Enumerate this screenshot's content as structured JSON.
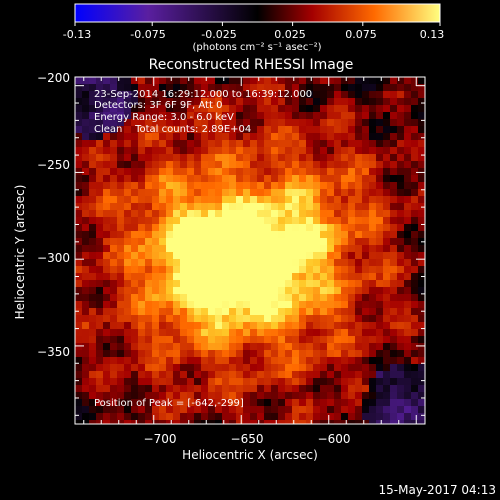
{
  "colorbar": {
    "tick_labels": [
      "-0.13",
      "-0.075",
      "-0.025",
      "0.025",
      "0.075",
      "0.13"
    ],
    "tick_values": [
      -0.13,
      -0.075,
      -0.025,
      0.025,
      0.075,
      0.13
    ],
    "range": [
      -0.13,
      0.13
    ],
    "units_label": "(photons cm⁻² s⁻¹ asec⁻²)",
    "color_stops": [
      "#0000ff",
      "#5a1fa0",
      "#000000",
      "#a40000",
      "#ff6a00",
      "#ffff80"
    ]
  },
  "title": "Reconstructed RHESSI Image",
  "info": {
    "line1": "23-Sep-2014 16:29:12.000 to 16:39:12.000",
    "line2": "Detectors: 3F 6F 9F, Att 0",
    "line3": "Energy Range: 3.0 - 6.0 keV",
    "line4": "Clean    Total counts: 2.89E+04"
  },
  "peak_label": "Position of Peak = [-642,-299]",
  "axes": {
    "xlabel": "Heliocentric X (arcsec)",
    "ylabel": "Heliocentric Y (arcsec)",
    "xlim": [
      -745,
      -545
    ],
    "ylim": [
      -395,
      -195
    ],
    "xticks": [
      -700,
      -650,
      -600
    ],
    "xtick_labels": [
      "−700",
      "−650",
      "−600"
    ],
    "yticks": [
      -200,
      -250,
      -300,
      -350
    ],
    "ytick_labels": [
      "−200",
      "−250",
      "−300",
      "−350"
    ]
  },
  "image": {
    "peak_position": [
      -642,
      -299
    ],
    "background_color": "#000000"
  },
  "footer": {
    "timestamp": "15-May-2017 04:13"
  }
}
